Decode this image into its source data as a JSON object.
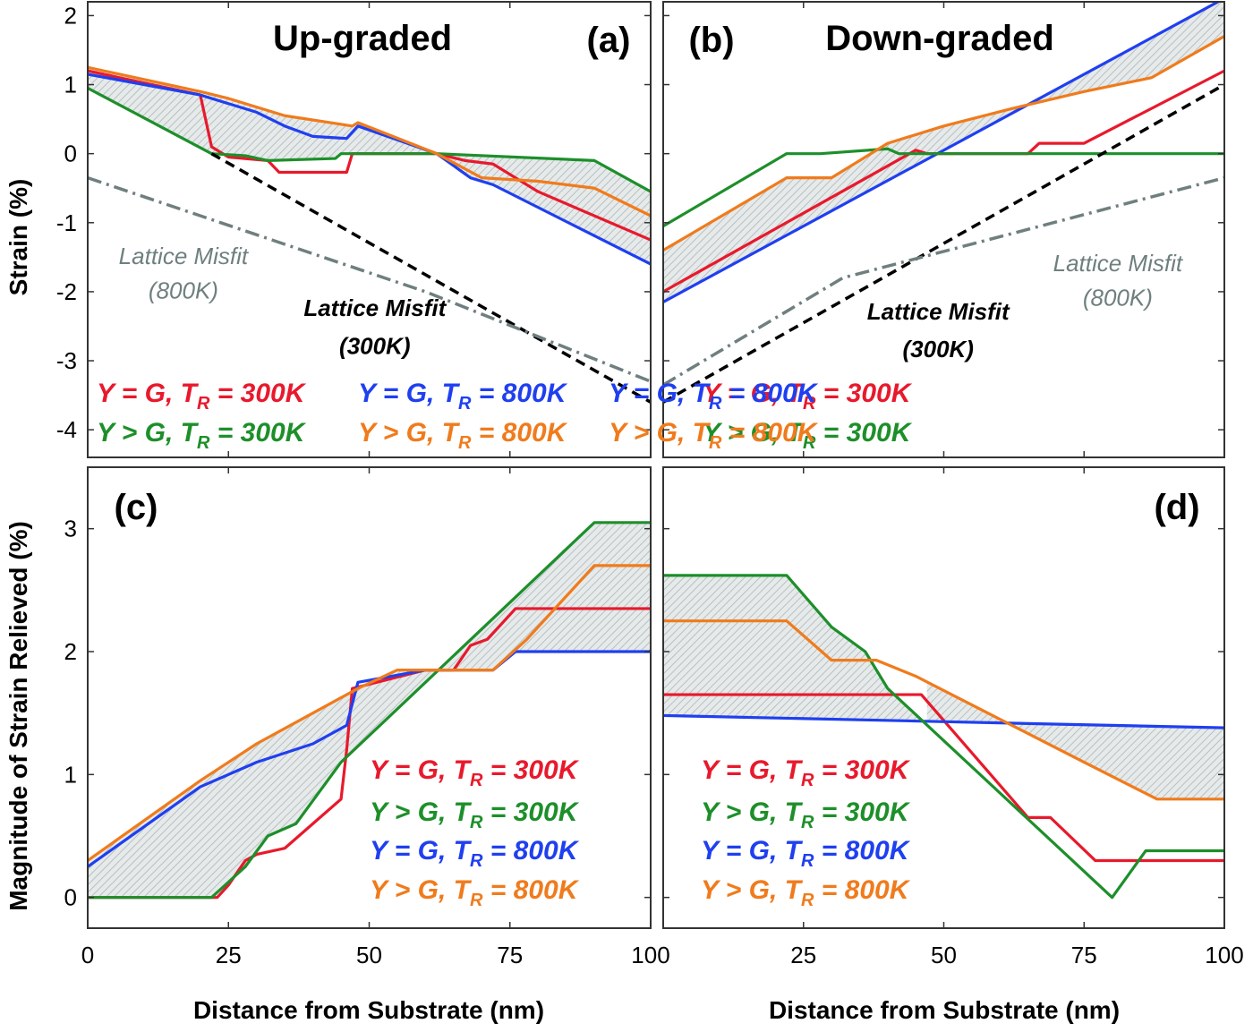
{
  "figure": {
    "ylabel_top": "Strain (%)",
    "ylabel_bottom": "Magnitude of Strain Relieved (%)",
    "xlabel": "Distance from Substrate (nm)",
    "legend": {
      "y_eq_g": "Y = G, T",
      "y_gt_g": "Y > G, T",
      "r_sub": "R",
      "t300": " = 300K",
      "t800": " = 800K"
    },
    "colors": {
      "red": "#e8192c",
      "blue": "#1f3ff0",
      "green": "#1d8f2a",
      "orange": "#f07b1c",
      "gray": "#6f7f7f",
      "black": "#000000",
      "shade": "#d4dada"
    }
  },
  "chart_data": [
    {
      "id": "a",
      "type": "line",
      "title": "Up-graded",
      "panel_label": "(a)",
      "xlim": [
        0,
        100
      ],
      "ylim": [
        -4.4,
        2.2
      ],
      "yticks": [
        -4,
        -3,
        -2,
        -1,
        0,
        1,
        2
      ],
      "xticks": [],
      "series": [
        {
          "name": "Y = G, TR = 300K",
          "color": "red",
          "x": [
            0,
            20,
            22,
            25,
            32,
            34,
            46,
            47,
            62,
            67,
            72,
            80,
            100
          ],
          "y": [
            1.2,
            0.85,
            0.1,
            -0.05,
            -0.1,
            -0.27,
            -0.27,
            0.0,
            0.0,
            -0.1,
            -0.15,
            -0.55,
            -1.25
          ]
        },
        {
          "name": "Y = G, TR = 800K",
          "color": "blue",
          "x": [
            0,
            20,
            30,
            35,
            40,
            46,
            48,
            62,
            68,
            72,
            100
          ],
          "y": [
            1.15,
            0.85,
            0.6,
            0.4,
            0.25,
            0.22,
            0.4,
            0.0,
            -0.35,
            -0.45,
            -1.6
          ]
        },
        {
          "name": "Y > G, TR = 300K",
          "color": "green",
          "x": [
            0,
            22,
            28,
            32,
            44,
            45,
            62,
            90,
            100
          ],
          "y": [
            0.95,
            0.0,
            -0.03,
            -0.1,
            -0.07,
            0.0,
            0.0,
            -0.1,
            -0.55
          ]
        },
        {
          "name": "Y > G, TR = 800K",
          "color": "orange",
          "x": [
            0,
            20,
            25,
            35,
            47,
            48,
            62,
            70,
            80,
            90,
            100
          ],
          "y": [
            1.25,
            0.9,
            0.8,
            0.55,
            0.4,
            0.45,
            0.0,
            -0.35,
            -0.4,
            -0.5,
            -0.9
          ]
        },
        {
          "name": "Lattice Misfit (300K)",
          "color": "black",
          "dash": "dashed",
          "x": [
            22,
            100
          ],
          "y": [
            0.0,
            -3.6
          ]
        },
        {
          "name": "Lattice Misfit (800K)",
          "color": "gray",
          "dash": "dashdot",
          "x": [
            0,
            60,
            100
          ],
          "y": [
            -0.35,
            -2.0,
            -3.3
          ]
        }
      ],
      "band": {
        "upper": "orange",
        "lower": "green",
        "x_end": 62
      },
      "band2": {
        "upper": "green",
        "lower": "blue",
        "x_start": 62
      },
      "annotations": [
        {
          "text": "Lattice Misfit",
          "x": 17,
          "y": -1.6,
          "color": "gray"
        },
        {
          "text": "(800K)",
          "x": 17,
          "y": -2.1,
          "color": "gray"
        },
        {
          "text": "Lattice Misfit",
          "x": 51,
          "y": -2.35,
          "color": "black"
        },
        {
          "text": "(300K)",
          "x": 51,
          "y": -2.9,
          "color": "black"
        }
      ]
    },
    {
      "id": "b",
      "type": "line",
      "title": "Down-graded",
      "panel_label": "(b)",
      "xlim": [
        0,
        100
      ],
      "ylim": [
        -4.4,
        2.2
      ],
      "yticks": [],
      "xticks": [],
      "series": [
        {
          "name": "Y = G, TR = 300K",
          "color": "red",
          "x": [
            0,
            45,
            47,
            65,
            67,
            75,
            100
          ],
          "y": [
            -2.0,
            0.05,
            0.0,
            0.0,
            0.15,
            0.15,
            1.2
          ]
        },
        {
          "name": "Y = G, TR = 800K",
          "color": "blue",
          "x": [
            0,
            100
          ],
          "y": [
            -2.15,
            2.25
          ]
        },
        {
          "name": "Y > G, TR = 300K",
          "color": "green",
          "x": [
            0,
            22,
            28,
            40,
            42,
            100
          ],
          "y": [
            -1.05,
            0.0,
            0.0,
            0.07,
            0.0,
            0.0
          ]
        },
        {
          "name": "Y > G, TR = 800K",
          "color": "orange",
          "x": [
            0,
            22,
            30,
            40,
            50,
            62,
            75,
            87,
            100
          ],
          "y": [
            -1.4,
            -0.35,
            -0.35,
            0.15,
            0.4,
            0.65,
            0.9,
            1.1,
            1.7
          ]
        },
        {
          "name": "Lattice Misfit (300K)",
          "color": "black",
          "dash": "dashed",
          "x": [
            0,
            100
          ],
          "y": [
            -3.6,
            1.0
          ]
        },
        {
          "name": "Lattice Misfit (800K)",
          "color": "gray",
          "dash": "dashdot",
          "x": [
            0,
            32,
            100
          ],
          "y": [
            -3.35,
            -1.8,
            -0.35
          ]
        }
      ],
      "band": {
        "upper": "orange",
        "lower": "blue",
        "x_end": 100
      },
      "annotations": [
        {
          "text": "Lattice Misfit",
          "x": 81,
          "y": -1.7,
          "color": "gray"
        },
        {
          "text": "(800K)",
          "x": 81,
          "y": -2.2,
          "color": "gray"
        },
        {
          "text": "Lattice Misfit",
          "x": 49,
          "y": -2.4,
          "color": "black"
        },
        {
          "text": "(300K)",
          "x": 49,
          "y": -2.95,
          "color": "black"
        }
      ]
    },
    {
      "id": "c",
      "type": "line",
      "title": "",
      "panel_label": "(c)",
      "xlim": [
        0,
        100
      ],
      "ylim": [
        -0.25,
        3.5
      ],
      "yticks": [
        0,
        1,
        2,
        3
      ],
      "xticks": [
        0,
        25,
        50,
        75,
        100
      ],
      "series": [
        {
          "name": "Y = G, TR = 300K",
          "color": "red",
          "x": [
            0,
            23,
            25,
            28,
            30,
            35,
            40,
            45,
            46,
            47,
            60,
            65,
            68,
            71,
            76,
            100
          ],
          "y": [
            0,
            0,
            0.1,
            0.3,
            0.35,
            0.4,
            0.6,
            0.8,
            1.2,
            1.7,
            1.85,
            1.85,
            2.05,
            2.1,
            2.35,
            2.35
          ]
        },
        {
          "name": "Y = G, TR = 800K",
          "color": "blue",
          "x": [
            0,
            20,
            30,
            40,
            46,
            48,
            60,
            70,
            72,
            76,
            100
          ],
          "y": [
            0.25,
            0.9,
            1.1,
            1.25,
            1.4,
            1.75,
            1.85,
            1.85,
            1.85,
            2.0,
            2.0
          ]
        },
        {
          "name": "Y > G, TR = 300K",
          "color": "green",
          "x": [
            0,
            22,
            28,
            32,
            37,
            45,
            90,
            100
          ],
          "y": [
            0,
            0,
            0.25,
            0.5,
            0.6,
            1.1,
            3.05,
            3.05
          ]
        },
        {
          "name": "Y > G, TR = 800K",
          "color": "orange",
          "x": [
            0,
            20,
            30,
            40,
            48,
            55,
            60,
            72,
            78,
            90,
            100
          ],
          "y": [
            0.3,
            0.95,
            1.25,
            1.5,
            1.7,
            1.85,
            1.85,
            1.85,
            2.1,
            2.7,
            2.7
          ]
        }
      ],
      "band": {
        "upper": "orange",
        "lower": "green",
        "x_end": 61
      },
      "band2": {
        "upper": "green",
        "lower": "blue",
        "x_start": 61
      }
    },
    {
      "id": "d",
      "type": "line",
      "title": "",
      "panel_label": "(d)",
      "xlim": [
        0,
        100
      ],
      "ylim": [
        -0.25,
        3.5
      ],
      "yticks": [],
      "xticks": [
        25,
        50,
        75,
        100
      ],
      "series": [
        {
          "name": "Y = G, TR = 300K",
          "color": "red",
          "x": [
            0,
            46,
            65,
            69,
            77,
            100
          ],
          "y": [
            1.65,
            1.65,
            0.65,
            0.65,
            0.3,
            0.3
          ]
        },
        {
          "name": "Y = G, TR = 800K",
          "color": "blue",
          "x": [
            0,
            100
          ],
          "y": [
            1.48,
            1.38
          ]
        },
        {
          "name": "Y > G, TR = 300K",
          "color": "green",
          "x": [
            0,
            22,
            30,
            36,
            40,
            80,
            86,
            100
          ],
          "y": [
            2.62,
            2.62,
            2.2,
            2.0,
            1.7,
            0.0,
            0.38,
            0.38
          ]
        },
        {
          "name": "Y > G, TR = 800K",
          "color": "orange",
          "x": [
            0,
            22,
            30,
            38,
            45,
            60,
            75,
            88,
            100
          ],
          "y": [
            2.25,
            2.25,
            1.93,
            1.93,
            1.8,
            1.45,
            1.1,
            0.8,
            0.8
          ]
        }
      ],
      "band": {
        "upper": "green",
        "lower": "blue",
        "x_end": 47
      },
      "band2": {
        "upper": "orange",
        "lower": "blue",
        "x_start": 47
      }
    }
  ]
}
